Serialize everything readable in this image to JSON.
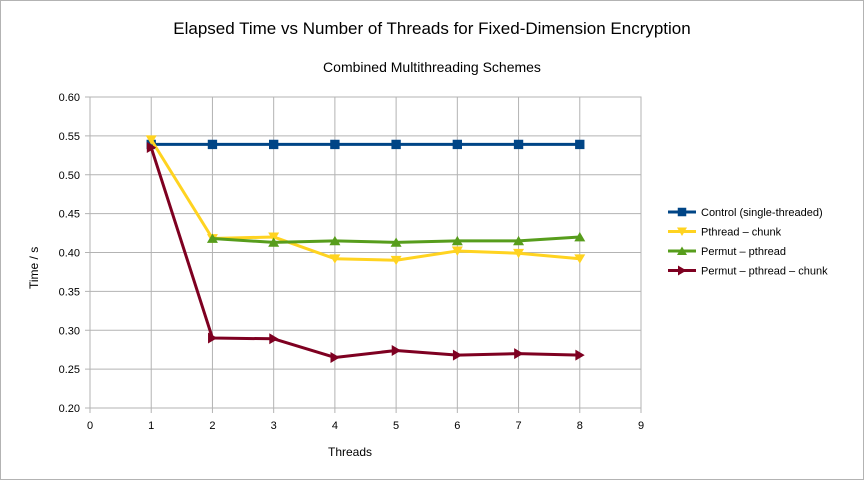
{
  "chart_data": {
    "type": "line",
    "title": "Elapsed Time vs Number of Threads for Fixed-Dimension Encryption",
    "subtitle": "Combined Multithreading Schemes",
    "xlabel": "Threads",
    "ylabel": "Time / s",
    "xlim": [
      0,
      9
    ],
    "ylim": [
      0.2,
      0.6
    ],
    "x_ticks": [
      "0",
      "1",
      "2",
      "3",
      "4",
      "5",
      "6",
      "7",
      "8",
      "9"
    ],
    "y_ticks": [
      "0.20",
      "0.25",
      "0.30",
      "0.35",
      "0.40",
      "0.45",
      "0.50",
      "0.55",
      "0.60"
    ],
    "grid": true,
    "legend_position": "right",
    "series": [
      {
        "name": "Control (single-threaded)",
        "color": "#004586",
        "marker": "square",
        "x": [
          1,
          2,
          3,
          4,
          5,
          6,
          7,
          8
        ],
        "values": [
          0.539,
          0.539,
          0.539,
          0.539,
          0.539,
          0.539,
          0.539,
          0.539
        ]
      },
      {
        "name": "Pthread – chunk",
        "color": "#ffd320",
        "marker": "triangle-down",
        "x": [
          1,
          2,
          3,
          4,
          5,
          6,
          7,
          8
        ],
        "values": [
          0.545,
          0.418,
          0.42,
          0.392,
          0.39,
          0.402,
          0.399,
          0.392
        ]
      },
      {
        "name": "Permut – pthread",
        "color": "#579d1c",
        "marker": "triangle-up",
        "x": [
          2,
          3,
          4,
          5,
          6,
          7,
          8
        ],
        "values": [
          0.418,
          0.413,
          0.415,
          0.413,
          0.415,
          0.415,
          0.42
        ]
      },
      {
        "name": "Permut – pthread – chunk",
        "color": "#7e0021",
        "marker": "triangle-right",
        "x": [
          1,
          2,
          3,
          4,
          5,
          6,
          7,
          8
        ],
        "values": [
          0.535,
          0.29,
          0.289,
          0.265,
          0.274,
          0.268,
          0.27,
          0.268
        ]
      }
    ]
  }
}
